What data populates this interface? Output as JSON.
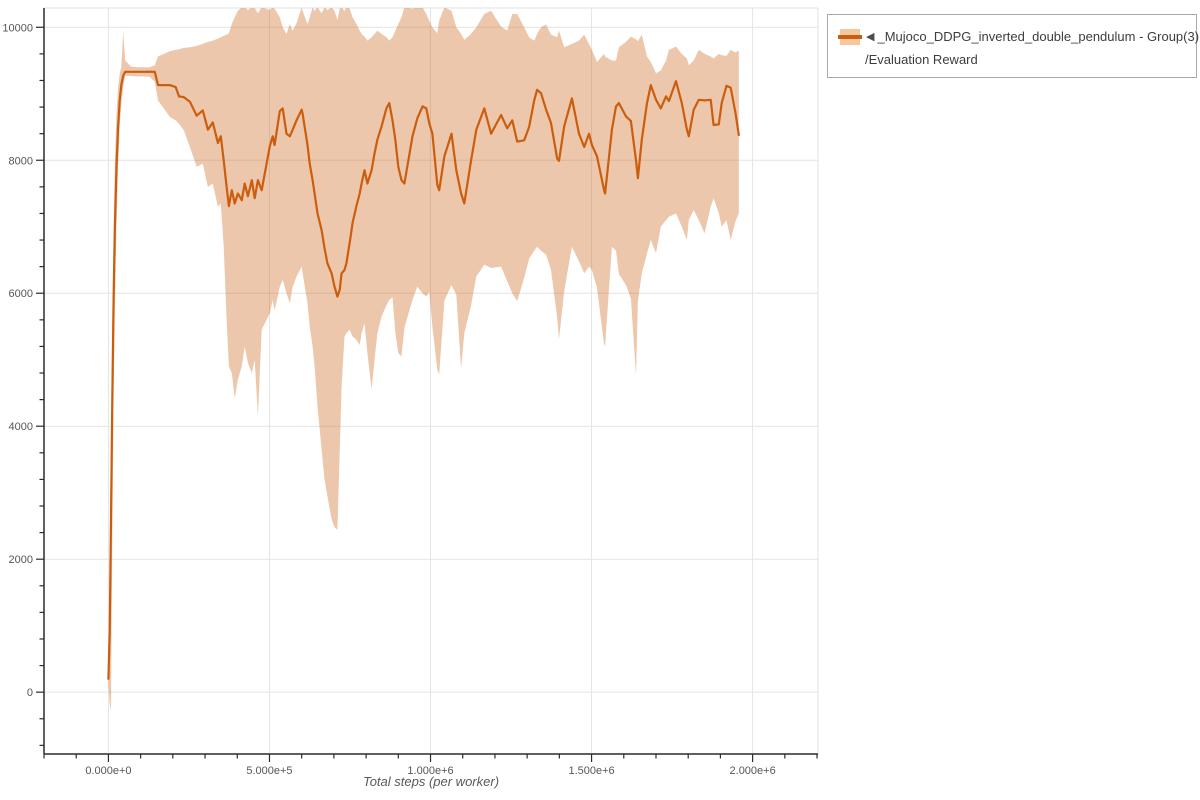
{
  "legend": {
    "collapse_icon": "◀",
    "series_label": "_Mujoco_DDPG_inverted_double_pendulum - Group(3)",
    "metric_label": "/Evaluation Reward"
  },
  "axes": {
    "x_title": "Total steps (per worker)",
    "x_tick_labels": [
      "0.000e+0",
      "5.000e+5",
      "1.000e+6",
      "1.500e+6",
      "2.000e+6"
    ],
    "y_tick_labels": [
      "0",
      "2000",
      "4000",
      "6000",
      "8000",
      "10000"
    ]
  },
  "colors": {
    "line": "#cb5e0e",
    "band_opacity": 0.35,
    "grid": "#e4e4e4",
    "border": "#e0e0e0",
    "spine": "#2b2b2b",
    "tick_label": "#565656",
    "background": "#ffffff"
  },
  "chart_data": {
    "type": "line",
    "title": "",
    "xlabel": "Total steps (per worker)",
    "ylabel": "",
    "xlim": [
      -200000,
      2203000
    ],
    "ylim": [
      -930,
      10290
    ],
    "x_major_ticks": [
      0,
      500000,
      1000000,
      1500000,
      2000000
    ],
    "x_minor_step": 100000,
    "y_major_ticks": [
      0,
      2000,
      4000,
      6000,
      8000,
      10000
    ],
    "y_minor_step": 400,
    "grid": true,
    "legend_position": "top-right",
    "series": [
      {
        "name": "_Mujoco_DDPG_inverted_double_pendulum - Group(3)/Evaluation Reward",
        "description": "Mean evaluation reward over 3 runs with min-max band, points = [step, mean, band_low, band_high]",
        "points": [
          [
            0,
            200,
            100,
            350
          ],
          [
            4000,
            900,
            -180,
            1700
          ],
          [
            8000,
            2600,
            -280,
            3900
          ],
          [
            12000,
            4400,
            2300,
            5600
          ],
          [
            16000,
            5900,
            4400,
            7000
          ],
          [
            20000,
            7000,
            5800,
            8000
          ],
          [
            25000,
            7900,
            7000,
            8700
          ],
          [
            30000,
            8500,
            7900,
            9100
          ],
          [
            35000,
            8900,
            8500,
            9300
          ],
          [
            40000,
            9130,
            8850,
            9400
          ],
          [
            46000,
            9270,
            9100,
            9940
          ],
          [
            52000,
            9330,
            9270,
            9500
          ],
          [
            70000,
            9330,
            9268,
            9410
          ],
          [
            90000,
            9330,
            9262,
            9400
          ],
          [
            110000,
            9330,
            9260,
            9398
          ],
          [
            128000,
            9332,
            9255,
            9400
          ],
          [
            144000,
            9330,
            9180,
            9430
          ],
          [
            154000,
            9130,
            8900,
            9560
          ],
          [
            191000,
            9130,
            8650,
            9640
          ],
          [
            209000,
            9100,
            8600,
            9660
          ],
          [
            219000,
            8960,
            8550,
            9670
          ],
          [
            234000,
            8950,
            8450,
            9690
          ],
          [
            253000,
            8880,
            8200,
            9700
          ],
          [
            274000,
            8670,
            7900,
            9720
          ],
          [
            293000,
            8750,
            7950,
            9750
          ],
          [
            309000,
            8460,
            7600,
            9780
          ],
          [
            324000,
            8570,
            7650,
            9800
          ],
          [
            340000,
            8260,
            7300,
            9830
          ],
          [
            349000,
            8360,
            7350,
            9850
          ],
          [
            358000,
            8000,
            6700,
            9870
          ],
          [
            367000,
            7600,
            5600,
            9890
          ],
          [
            374000,
            7310,
            4900,
            9910
          ],
          [
            383000,
            7550,
            4800,
            10050
          ],
          [
            392000,
            7350,
            4420,
            10150
          ],
          [
            402000,
            7500,
            4700,
            10250
          ],
          [
            414000,
            7400,
            4900,
            10300
          ],
          [
            423000,
            7650,
            5200,
            10300
          ],
          [
            433000,
            7460,
            4950,
            10260
          ],
          [
            445000,
            7700,
            4800,
            10300
          ],
          [
            454000,
            7430,
            5000,
            10290
          ],
          [
            464000,
            7700,
            4150,
            10210
          ],
          [
            476000,
            7550,
            5450,
            10300
          ],
          [
            501000,
            8210,
            5700,
            10260
          ],
          [
            510000,
            8360,
            5900,
            10300
          ],
          [
            516000,
            8230,
            5740,
            10280
          ],
          [
            532000,
            8740,
            6100,
            10150
          ],
          [
            541000,
            8780,
            6200,
            10000
          ],
          [
            553000,
            8400,
            6000,
            9900
          ],
          [
            563000,
            8360,
            5850,
            10050
          ],
          [
            572000,
            8460,
            6100,
            9950
          ],
          [
            584000,
            8600,
            6250,
            10060
          ],
          [
            600000,
            8760,
            6400,
            10300
          ],
          [
            603000,
            8700,
            6300,
            10250
          ],
          [
            618000,
            8230,
            5850,
            10050
          ],
          [
            625000,
            7950,
            5500,
            10150
          ],
          [
            634000,
            7700,
            5200,
            10300
          ],
          [
            640000,
            7500,
            4900,
            10250
          ],
          [
            649000,
            7200,
            4300,
            10300
          ],
          [
            662000,
            6950,
            3650,
            10210
          ],
          [
            671000,
            6680,
            3200,
            10300
          ],
          [
            680000,
            6450,
            2950,
            10260
          ],
          [
            693000,
            6300,
            2600,
            10300
          ],
          [
            702000,
            6100,
            2480,
            10250
          ],
          [
            711000,
            5950,
            2440,
            10110
          ],
          [
            718000,
            6050,
            3600,
            10280
          ],
          [
            724000,
            6300,
            4600,
            10300
          ],
          [
            733000,
            6350,
            5350,
            10250
          ],
          [
            739000,
            6450,
            5400,
            10300
          ],
          [
            749000,
            6760,
            5450,
            10280
          ],
          [
            758000,
            7060,
            5350,
            10150
          ],
          [
            770000,
            7310,
            5300,
            10050
          ],
          [
            780000,
            7500,
            5220,
            9950
          ],
          [
            786000,
            7650,
            5400,
            9900
          ],
          [
            795000,
            7850,
            5550,
            9860
          ],
          [
            804000,
            7650,
            5100,
            9800
          ],
          [
            817000,
            7850,
            4550,
            9850
          ],
          [
            826000,
            8100,
            5000,
            9900
          ],
          [
            835000,
            8310,
            5400,
            9950
          ],
          [
            848000,
            8510,
            5650,
            9900
          ],
          [
            863000,
            8780,
            5820,
            9850
          ],
          [
            872000,
            8860,
            5900,
            9800
          ],
          [
            882000,
            8600,
            5940,
            9850
          ],
          [
            891000,
            8300,
            5400,
            9950
          ],
          [
            900000,
            7900,
            5100,
            10050
          ],
          [
            910000,
            7700,
            5050,
            10150
          ],
          [
            919000,
            7650,
            5480,
            10300
          ],
          [
            944000,
            8360,
            5900,
            10280
          ],
          [
            959000,
            8630,
            6100,
            10300
          ],
          [
            975000,
            8810,
            6000,
            10300
          ],
          [
            987000,
            8780,
            5950,
            10200
          ],
          [
            996000,
            8560,
            6020,
            10100
          ],
          [
            1006000,
            8400,
            5500,
            10000
          ],
          [
            1021000,
            7630,
            4850,
            9910
          ],
          [
            1027000,
            7550,
            4780,
            10100
          ],
          [
            1043000,
            8060,
            5890,
            10300
          ],
          [
            1065000,
            8400,
            6120,
            10250
          ],
          [
            1080000,
            7850,
            5980,
            10000
          ],
          [
            1095000,
            7500,
            4870,
            9900
          ],
          [
            1105000,
            7350,
            5400,
            9810
          ],
          [
            1126000,
            8000,
            5820,
            9900
          ],
          [
            1142000,
            8460,
            6250,
            10000
          ],
          [
            1167000,
            8780,
            6430,
            10200
          ],
          [
            1188000,
            8400,
            6380,
            10250
          ],
          [
            1219000,
            8680,
            6400,
            10010
          ],
          [
            1238000,
            8480,
            6180,
            9950
          ],
          [
            1254000,
            8600,
            6000,
            10200
          ],
          [
            1269000,
            8280,
            5880,
            10200
          ],
          [
            1291000,
            8300,
            6230,
            10000
          ],
          [
            1306000,
            8500,
            6520,
            9850
          ],
          [
            1322000,
            8900,
            6640,
            9800
          ],
          [
            1331000,
            9060,
            6700,
            9900
          ],
          [
            1343000,
            9010,
            6640,
            10000
          ],
          [
            1359000,
            8760,
            6580,
            10040
          ],
          [
            1374000,
            8560,
            6350,
            9890
          ],
          [
            1393000,
            8030,
            5640,
            9850
          ],
          [
            1399000,
            7990,
            5310,
            9950
          ],
          [
            1415000,
            8510,
            6030,
            9700
          ],
          [
            1439000,
            8930,
            6700,
            9750
          ],
          [
            1461000,
            8400,
            6480,
            9800
          ],
          [
            1477000,
            8200,
            6300,
            9890
          ],
          [
            1492000,
            8400,
            6400,
            9750
          ],
          [
            1501000,
            8230,
            6350,
            9660
          ],
          [
            1517000,
            8060,
            6080,
            9480
          ],
          [
            1539000,
            7550,
            5230,
            9600
          ],
          [
            1542000,
            7500,
            5210,
            9560
          ],
          [
            1563000,
            8460,
            6700,
            9500
          ],
          [
            1576000,
            8810,
            6640,
            9500
          ],
          [
            1585000,
            8860,
            6290,
            9700
          ],
          [
            1607000,
            8660,
            6120,
            9780
          ],
          [
            1622000,
            8590,
            5920,
            9860
          ],
          [
            1638000,
            8000,
            4760,
            9820
          ],
          [
            1644000,
            7730,
            5880,
            9790
          ],
          [
            1656000,
            8310,
            6300,
            9890
          ],
          [
            1672000,
            8860,
            6600,
            9560
          ],
          [
            1684000,
            9130,
            6800,
            9480
          ],
          [
            1700000,
            8910,
            6600,
            9310
          ],
          [
            1715000,
            8780,
            7000,
            9350
          ],
          [
            1731000,
            8960,
            7100,
            9500
          ],
          [
            1740000,
            8890,
            7150,
            9660
          ],
          [
            1762000,
            9190,
            7200,
            9710
          ],
          [
            1780000,
            8860,
            7000,
            9600
          ],
          [
            1796000,
            8460,
            6800,
            9530
          ],
          [
            1802000,
            8360,
            7100,
            9430
          ],
          [
            1817000,
            8760,
            7250,
            9500
          ],
          [
            1833000,
            8910,
            7100,
            9660
          ],
          [
            1851000,
            8900,
            6900,
            9600
          ],
          [
            1870000,
            8910,
            7300,
            9560
          ],
          [
            1879000,
            8530,
            7430,
            9530
          ],
          [
            1895000,
            8540,
            7200,
            9600
          ],
          [
            1904000,
            8860,
            7000,
            9580
          ],
          [
            1919000,
            9120,
            7100,
            9570
          ],
          [
            1932000,
            9090,
            6800,
            9660
          ],
          [
            1947000,
            8710,
            7080,
            9620
          ],
          [
            1957000,
            8380,
            7200,
            9650
          ]
        ]
      }
    ]
  }
}
